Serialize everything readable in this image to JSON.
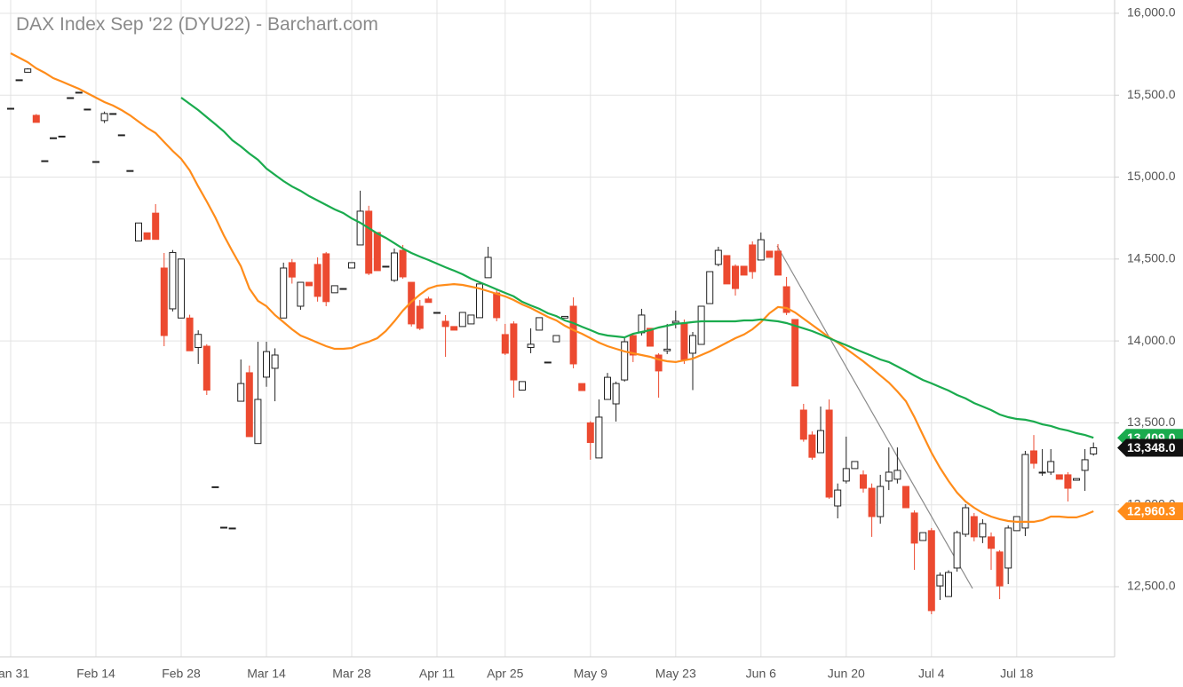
{
  "chart_data": {
    "type": "candlestick",
    "title": "DAX Index Sep '22 (DYU22) - Barchart.com",
    "categories": [
      "Jan 31",
      null,
      null,
      null,
      null,
      null,
      null,
      null,
      null,
      null,
      "Feb 14",
      null,
      null,
      null,
      null,
      null,
      null,
      null,
      null,
      null,
      "Feb 28",
      null,
      null,
      null,
      null,
      null,
      null,
      null,
      null,
      null,
      "Mar 14",
      null,
      null,
      null,
      null,
      null,
      null,
      null,
      null,
      null,
      "Mar 28",
      null,
      null,
      null,
      null,
      null,
      null,
      null,
      null,
      null,
      "Apr 11",
      null,
      null,
      null,
      null,
      null,
      null,
      null,
      "Apr 25",
      null,
      null,
      null,
      null,
      null,
      null,
      null,
      null,
      null,
      "May 9",
      null,
      null,
      null,
      null,
      null,
      null,
      null,
      null,
      null,
      "May 23",
      null,
      null,
      null,
      null,
      null,
      null,
      null,
      null,
      null,
      "Jun 6",
      null,
      null,
      null,
      null,
      null,
      null,
      null,
      null,
      null,
      "Jun 20",
      null,
      null,
      null,
      null,
      null,
      null,
      null,
      null,
      null,
      "Jul 4",
      null,
      null,
      null,
      null,
      null,
      null,
      null,
      null,
      null,
      "Jul 18",
      null,
      null,
      null,
      null,
      null,
      null,
      null,
      null,
      null
    ],
    "open": [
      15420,
      15594,
      15640,
      15377,
      15100,
      15240,
      15250,
      15485,
      15518,
      15415,
      15095,
      15345,
      15388,
      15258,
      15040,
      14610,
      14660,
      14780,
      14445,
      14196,
      14140,
      14140,
      13960,
      13968,
      13110,
      12863,
      12858,
      13632,
      13806,
      13374,
      13779,
      13833,
      14140,
      14478,
      14212,
      14358,
      14467,
      14532,
      14294,
      14320,
      14445,
      14586,
      14792,
      14662,
      14456,
      14370,
      14553,
      14358,
      14212,
      14256,
      14174,
      14120,
      14088,
      14088,
      14104,
      14142,
      14386,
      14293,
      14039,
      14104,
      13700,
      13960,
      14066,
      13871,
      13995,
      14140,
      14212,
      13740,
      13500,
      13286,
      13643,
      13616,
      13762,
      14033,
      14050,
      14077,
      13914,
      13940,
      14110,
      14104,
      13925,
      13979,
      14228,
      14467,
      14521,
      14456,
      14456,
      14586,
      14494,
      14548,
      14548,
      14331,
      14131,
      13578,
      13426,
      13318,
      13578,
      12993,
      13145,
      13221,
      13183,
      13101,
      12928,
      13145,
      13156,
      13112,
      12950,
      12782,
      12842,
      12505,
      12440,
      12614,
      12820,
      12928,
      12804,
      12804,
      12712,
      12614,
      12842,
      12858,
      13329,
      13194,
      13199,
      13183,
      13183,
      13150,
      13210,
      13310
    ],
    "high": [
      15420,
      15594,
      15665,
      15385,
      15100,
      15240,
      15250,
      15485,
      15518,
      15415,
      15095,
      15400,
      15388,
      15258,
      15040,
      14720,
      14660,
      14835,
      14537,
      14555,
      14500,
      14160,
      14065,
      13980,
      13110,
      12863,
      12858,
      13887,
      13850,
      13995,
      13995,
      13955,
      14478,
      14500,
      14358,
      14358,
      14510,
      14543,
      14337,
      14320,
      14478,
      14917,
      14825,
      14662,
      14456,
      14564,
      14586,
      14358,
      14250,
      14270,
      14174,
      14158,
      14088,
      14174,
      14158,
      14348,
      14575,
      14320,
      14104,
      14120,
      13752,
      14077,
      14142,
      13871,
      14033,
      14150,
      14266,
      13740,
      13510,
      13643,
      13805,
      13752,
      14022,
      14044,
      14196,
      14077,
      13925,
      14104,
      14185,
      14131,
      14055,
      14212,
      14423,
      14575,
      14521,
      14467,
      14456,
      14608,
      14662,
      14548,
      14591,
      14391,
      14131,
      13616,
      13448,
      13600,
      13643,
      13130,
      13416,
      13264,
      13210,
      13130,
      13183,
      13350,
      13350,
      13112,
      12966,
      12830,
      12858,
      12587,
      12600,
      12842,
      13004,
      12950,
      12912,
      12831,
      12723,
      12874,
      12928,
      13329,
      13426,
      13340,
      13340,
      13183,
      13199,
      13160,
      13340,
      13380
    ],
    "low": [
      15420,
      15594,
      15640,
      15334,
      15100,
      15240,
      15250,
      15485,
      15518,
      15415,
      15095,
      15330,
      15388,
      15258,
      15040,
      14610,
      14620,
      14620,
      13968,
      14180,
      14140,
      13940,
      13860,
      13670,
      13110,
      12863,
      12858,
      13632,
      13416,
      13374,
      13720,
      13632,
      14140,
      14350,
      14190,
      14337,
      14240,
      14212,
      14294,
      14320,
      14445,
      14586,
      14402,
      14429,
      14456,
      14360,
      14380,
      14088,
      14066,
      14235,
      14174,
      13903,
      14066,
      14088,
      14104,
      14142,
      14386,
      14120,
      13914,
      13654,
      13700,
      13925,
      14066,
      13871,
      13995,
      14140,
      13833,
      13697,
      13275,
      13286,
      13643,
      13508,
      13752,
      13871,
      14033,
      13968,
      13654,
      13920,
      14077,
      13860,
      13700,
      13979,
      14228,
      14456,
      14348,
      14277,
      14402,
      14380,
      14494,
      14510,
      14402,
      14158,
      13725,
      13385,
      13275,
      13318,
      13036,
      12917,
      13130,
      13221,
      13074,
      12804,
      12885,
      13090,
      13130,
      12982,
      12603,
      12782,
      12332,
      12419,
      12440,
      12592,
      12804,
      12777,
      12766,
      12603,
      12424,
      12516,
      12842,
      12809,
      13221,
      13177,
      13183,
      13156,
      13020,
      13150,
      13085,
      13300
    ],
    "close": [
      15420,
      15594,
      15660,
      15334,
      15100,
      15240,
      15250,
      15485,
      15518,
      15415,
      15095,
      15388,
      15388,
      15258,
      15040,
      14720,
      14620,
      14620,
      14033,
      14540,
      14500,
      13940,
      14040,
      13700,
      13110,
      12863,
      12858,
      13740,
      13416,
      13643,
      13935,
      13914,
      14445,
      14390,
      14358,
      14337,
      14272,
      14240,
      14337,
      14320,
      14478,
      14792,
      14413,
      14429,
      14456,
      14537,
      14391,
      14104,
      14077,
      14235,
      14174,
      14088,
      14066,
      14174,
      14158,
      14348,
      14510,
      14142,
      13925,
      13762,
      13752,
      13980,
      14142,
      13871,
      14033,
      14150,
      13860,
      13697,
      13380,
      13535,
      13778,
      13740,
      13995,
      13914,
      14158,
      13968,
      13817,
      13950,
      14120,
      13887,
      14033,
      14212,
      14423,
      14553,
      14348,
      14320,
      14402,
      14423,
      14618,
      14510,
      14402,
      14174,
      13725,
      13400,
      13290,
      13453,
      13047,
      13090,
      13221,
      13264,
      13101,
      12928,
      13112,
      13199,
      13210,
      12982,
      12766,
      12830,
      12354,
      12570,
      12587,
      12830,
      12982,
      12804,
      12885,
      12734,
      12505,
      12858,
      12928,
      13307,
      13253,
      13199,
      13264,
      13156,
      13101,
      13160,
      13275,
      13348
    ],
    "close_label": "13,348.0",
    "up_color": "#ffffff",
    "down_color": "#ec4a30",
    "series": [
      {
        "type": "line",
        "color": "#ff8c1a",
        "last_label": "12,960.3",
        "values": [
          15756,
          15729,
          15702,
          15664,
          15637,
          15604,
          15583,
          15561,
          15539,
          15512,
          15485,
          15458,
          15437,
          15409,
          15377,
          15339,
          15301,
          15269,
          15214,
          15160,
          15111,
          15041,
          14943,
          14851,
          14754,
          14645,
          14548,
          14456,
          14320,
          14245,
          14212,
          14158,
          14115,
          14071,
          14033,
          14012,
          13990,
          13968,
          13952,
          13952,
          13957,
          13979,
          13995,
          14017,
          14060,
          14120,
          14185,
          14239,
          14283,
          14320,
          14337,
          14342,
          14347,
          14342,
          14331,
          14320,
          14304,
          14288,
          14272,
          14250,
          14223,
          14201,
          14174,
          14147,
          14125,
          14093,
          14066,
          14044,
          14017,
          13990,
          13968,
          13952,
          13936,
          13925,
          13914,
          13903,
          13887,
          13876,
          13871,
          13882,
          13892,
          13914,
          13936,
          13963,
          13990,
          14017,
          14039,
          14071,
          14115,
          14169,
          14207,
          14201,
          14174,
          14136,
          14098,
          14060,
          14022,
          13990,
          13952,
          13914,
          13876,
          13833,
          13789,
          13746,
          13692,
          13632,
          13535,
          13426,
          13318,
          13226,
          13145,
          13074,
          13020,
          12982,
          12950,
          12928,
          12912,
          12901,
          12896,
          12896,
          12896,
          12906,
          12928,
          12928,
          12923,
          12923,
          12939,
          12960.3
        ]
      },
      {
        "type": "line",
        "color": "#1aab4e",
        "last_label": "13,409.0",
        "values": [
          null,
          null,
          null,
          null,
          null,
          null,
          null,
          null,
          null,
          null,
          null,
          null,
          null,
          null,
          null,
          null,
          null,
          null,
          null,
          null,
          15485,
          15447,
          15409,
          15366,
          15323,
          15279,
          15225,
          15187,
          15144,
          15106,
          15052,
          15014,
          14976,
          14943,
          14916,
          14884,
          14857,
          14830,
          14803,
          14781,
          14748,
          14721,
          14689,
          14656,
          14629,
          14597,
          14564,
          14537,
          14515,
          14494,
          14472,
          14450,
          14429,
          14407,
          14380,
          14358,
          14337,
          14315,
          14293,
          14272,
          14239,
          14217,
          14196,
          14169,
          14152,
          14125,
          14109,
          14087,
          14066,
          14044,
          14033,
          14028,
          14022,
          14044,
          14055,
          14066,
          14082,
          14093,
          14104,
          14109,
          14115,
          14120,
          14120,
          14120,
          14120,
          14120,
          14125,
          14125,
          14131,
          14125,
          14120,
          14109,
          14093,
          14077,
          14060,
          14039,
          14017,
          13995,
          13974,
          13952,
          13930,
          13909,
          13887,
          13871,
          13844,
          13817,
          13789,
          13762,
          13741,
          13719,
          13697,
          13670,
          13649,
          13621,
          13600,
          13578,
          13551,
          13535,
          13524,
          13519,
          13508,
          13491,
          13481,
          13464,
          13453,
          13437,
          13426,
          13409.0
        ]
      }
    ],
    "ylim": [
      12072,
      16081
    ],
    "yticks": [
      {
        "value": 12500,
        "label": "12,500.0"
      },
      {
        "value": 13000,
        "label": "13,000.0"
      },
      {
        "value": 13500,
        "label": "13,500.0"
      },
      {
        "value": 14000,
        "label": "14,000.0"
      },
      {
        "value": 14500,
        "label": "14,500.0"
      },
      {
        "value": 15000,
        "label": "15,000.0"
      },
      {
        "value": 15500,
        "label": "15,500.0"
      },
      {
        "value": 16000,
        "label": "16,000.0"
      }
    ],
    "grid": true
  }
}
